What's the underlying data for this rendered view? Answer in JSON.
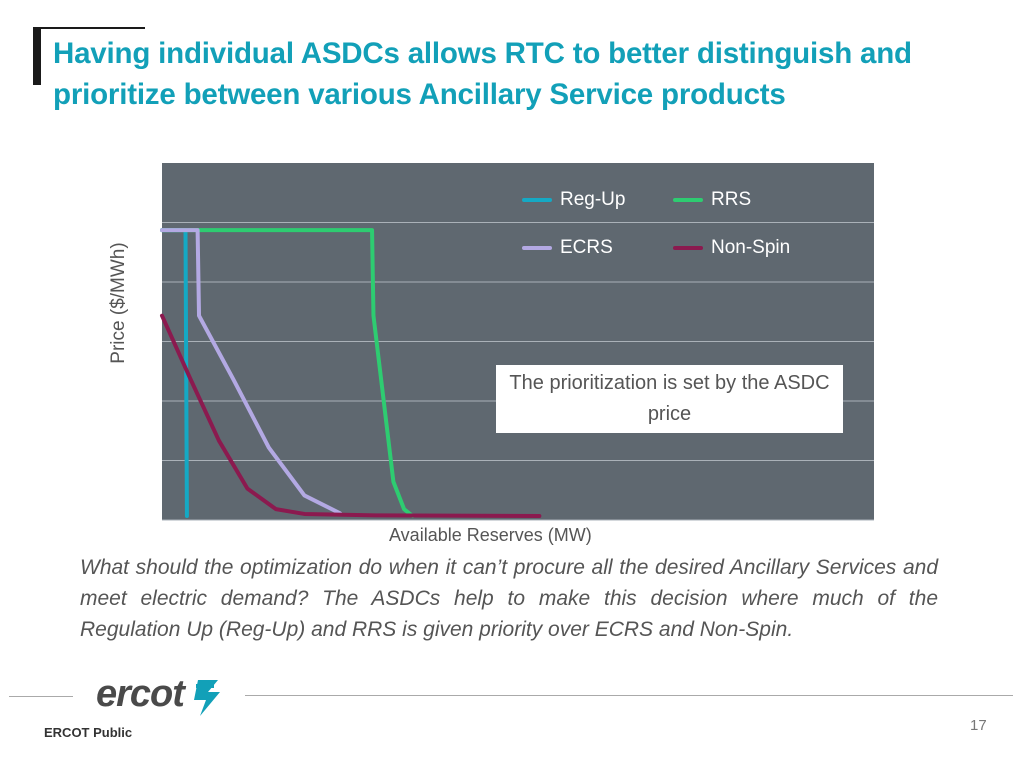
{
  "slide": {
    "title": "Having individual ASDCs allows RTC to better distinguish and prioritize between various Ancillary Service products",
    "question": "What should the optimization do when it can’t procure all the desired Ancillary Services and meet electric demand?  The ASDCs help to make this decision where much of the Regulation Up (Reg-Up) and RRS is given priority over ECRS and Non-Spin.",
    "annotation": "The prioritization is set by the ASDC price",
    "footer_label": "ERCOT Public",
    "page_number": "17",
    "logo_text": "ercot"
  },
  "chart_data": {
    "type": "line",
    "xlabel": "Available Reserves (MW)",
    "ylabel": "Price ($/MWh)",
    "x_ticks_shown": false,
    "y_ticks_shown": false,
    "grid": true,
    "legend_placement": "top-right",
    "background": "#5f6870",
    "series": [
      {
        "name": "Reg-Up",
        "color": "#15a9c4",
        "points": [
          [
            0.0,
            0.835
          ],
          [
            0.033,
            0.835
          ],
          [
            0.035,
            0.0
          ]
        ]
      },
      {
        "name": "RRS",
        "color": "#2ecc71",
        "points": [
          [
            0.0,
            0.835
          ],
          [
            0.295,
            0.835
          ],
          [
            0.297,
            0.585
          ],
          [
            0.31,
            0.36
          ],
          [
            0.325,
            0.1
          ],
          [
            0.34,
            0.02
          ],
          [
            0.352,
            0.0
          ]
        ]
      },
      {
        "name": "ECRS",
        "color": "#b3a9e3",
        "points": [
          [
            0.0,
            0.835
          ],
          [
            0.05,
            0.835
          ],
          [
            0.052,
            0.585
          ],
          [
            0.1,
            0.4
          ],
          [
            0.15,
            0.2
          ],
          [
            0.2,
            0.06
          ],
          [
            0.25,
            0.008
          ]
        ]
      },
      {
        "name": "Non-Spin",
        "color": "#8b1a4f",
        "points": [
          [
            0.0,
            0.585
          ],
          [
            0.04,
            0.4
          ],
          [
            0.08,
            0.22
          ],
          [
            0.12,
            0.08
          ],
          [
            0.16,
            0.02
          ],
          [
            0.2,
            0.006
          ],
          [
            0.3,
            0.002
          ],
          [
            0.53,
            0.0
          ]
        ]
      }
    ]
  }
}
